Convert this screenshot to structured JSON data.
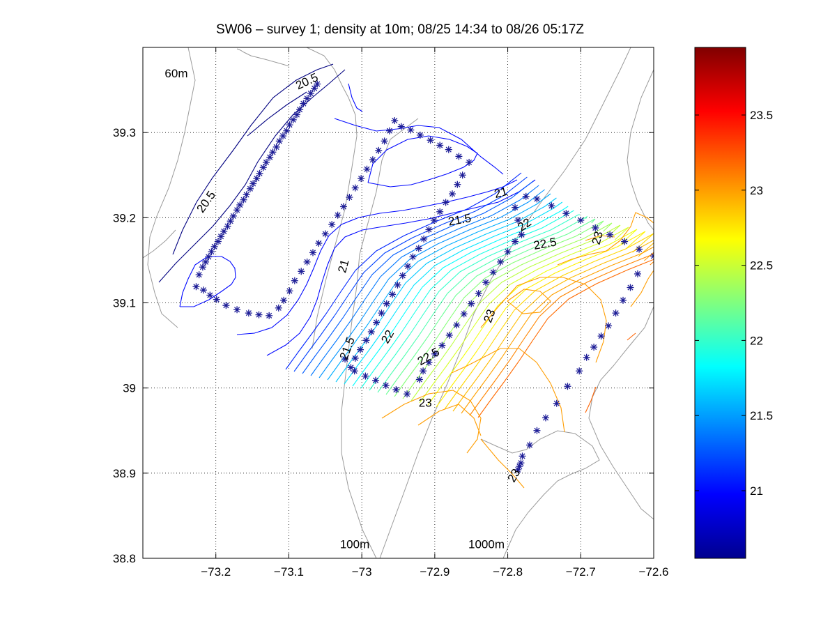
{
  "chart_data": {
    "type": "contour",
    "title": "SW06 – survey 1; density at 10m; 08/25 14:34 to 08/26 05:17Z",
    "xlim": [
      -73.3,
      -72.6
    ],
    "ylim": [
      38.8,
      39.4
    ],
    "x_ticks": [
      -73.2,
      -73.1,
      -73.0,
      -72.9,
      -72.8,
      -72.7,
      -72.6
    ],
    "x_tick_labels": [
      "−73.2",
      "−73.1",
      "−73",
      "−72.9",
      "−72.8",
      "−72.7",
      "−72.6"
    ],
    "y_ticks": [
      38.8,
      38.9,
      39.0,
      39.1,
      39.2,
      39.3
    ],
    "y_tick_labels": [
      "38.8",
      "38.9",
      "39",
      "39.1",
      "39.2",
      "39.3"
    ],
    "grid": true,
    "colorbar": {
      "range": [
        20.55,
        23.95
      ],
      "ticks": [
        21,
        21.5,
        22,
        22.5,
        23,
        23.5
      ],
      "tick_labels": [
        "21",
        "21.5",
        "22",
        "22.5",
        "23",
        "23.5"
      ],
      "colormap": "jet"
    },
    "isobath_labels": [
      {
        "text": "60m",
        "lon": -73.27,
        "lat": 39.365
      },
      {
        "text": "100m",
        "lon": -73.03,
        "lat": 38.812
      },
      {
        "text": "1000m",
        "lon": -72.854,
        "lat": 38.812
      }
    ],
    "contour_labels": [
      {
        "text": "20.5",
        "lon": -73.073,
        "lat": 39.356,
        "rot": -25
      },
      {
        "text": "20.5",
        "lon": -73.209,
        "lat": 39.216,
        "rot": -55
      },
      {
        "text": "21",
        "lon": -73.02,
        "lat": 39.142,
        "rot": -75
      },
      {
        "text": "21.5",
        "lon": -73.015,
        "lat": 39.045,
        "rot": -70
      },
      {
        "text": "22",
        "lon": -72.96,
        "lat": 39.058,
        "rot": -60
      },
      {
        "text": "22.5",
        "lon": -72.906,
        "lat": 39.033,
        "rot": -30
      },
      {
        "text": "23",
        "lon": -72.913,
        "lat": 38.978,
        "rot": 0
      },
      {
        "text": "21",
        "lon": -72.808,
        "lat": 39.225,
        "rot": -15
      },
      {
        "text": "21.5",
        "lon": -72.865,
        "lat": 39.193,
        "rot": -10
      },
      {
        "text": "22",
        "lon": -72.774,
        "lat": 39.188,
        "rot": -35
      },
      {
        "text": "22.5",
        "lon": -72.748,
        "lat": 39.165,
        "rot": -10
      },
      {
        "text": "23",
        "lon": -72.672,
        "lat": 39.175,
        "rot": -75
      },
      {
        "text": "23",
        "lon": -72.82,
        "lat": 39.083,
        "rot": -70
      },
      {
        "text": "23",
        "lon": -72.787,
        "lat": 38.895,
        "rot": -60
      }
    ],
    "stations": [
      [
        -73.227,
        39.119
      ],
      [
        -73.223,
        39.133
      ],
      [
        -73.218,
        39.142
      ],
      [
        -73.214,
        39.148
      ],
      [
        -73.21,
        39.154
      ],
      [
        -73.206,
        39.16
      ],
      [
        -73.202,
        39.166
      ],
      [
        -73.197,
        39.172
      ],
      [
        -73.193,
        39.178
      ],
      [
        -73.189,
        39.184
      ],
      [
        -73.184,
        39.19
      ],
      [
        -73.18,
        39.196
      ],
      [
        -73.176,
        39.202
      ],
      [
        -73.171,
        39.209
      ],
      [
        -73.167,
        39.215
      ],
      [
        -73.162,
        39.221
      ],
      [
        -73.158,
        39.227
      ],
      [
        -73.153,
        39.234
      ],
      [
        -73.149,
        39.24
      ],
      [
        -73.144,
        39.246
      ],
      [
        -73.14,
        39.252
      ],
      [
        -73.135,
        39.259
      ],
      [
        -73.131,
        39.265
      ],
      [
        -73.126,
        39.271
      ],
      [
        -73.122,
        39.277
      ],
      [
        -73.117,
        39.283
      ],
      [
        -73.113,
        39.29
      ],
      [
        -73.108,
        39.296
      ],
      [
        -73.103,
        39.302
      ],
      [
        -73.099,
        39.309
      ],
      [
        -73.094,
        39.315
      ],
      [
        -73.089,
        39.321
      ],
      [
        -73.085,
        39.327
      ],
      [
        -73.08,
        39.334
      ],
      [
        -73.075,
        39.34
      ],
      [
        -73.07,
        39.346
      ],
      [
        -73.065,
        39.352
      ],
      [
        -73.061,
        39.357
      ],
      [
        -73.217,
        39.115
      ],
      [
        -73.208,
        39.109
      ],
      [
        -73.199,
        39.104
      ],
      [
        -73.186,
        39.097
      ],
      [
        -73.171,
        39.092
      ],
      [
        -73.155,
        39.088
      ],
      [
        -73.141,
        39.086
      ],
      [
        -73.127,
        39.085
      ],
      [
        -73.114,
        39.094
      ],
      [
        -73.107,
        39.103
      ],
      [
        -73.099,
        39.114
      ],
      [
        -73.092,
        39.126
      ],
      [
        -73.083,
        39.137
      ],
      [
        -73.075,
        39.148
      ],
      [
        -73.067,
        39.159
      ],
      [
        -73.059,
        39.17
      ],
      [
        -73.05,
        39.181
      ],
      [
        -73.041,
        39.192
      ],
      [
        -73.033,
        39.203
      ],
      [
        -73.025,
        39.213
      ],
      [
        -73.017,
        39.224
      ],
      [
        -73.009,
        39.235
      ],
      [
        -73.001,
        39.246
      ],
      [
        -72.993,
        39.257
      ],
      [
        -72.985,
        39.268
      ],
      [
        -72.977,
        39.279
      ],
      [
        -72.969,
        39.29
      ],
      [
        -72.962,
        39.302
      ],
      [
        -72.955,
        39.314
      ],
      [
        -72.946,
        39.307
      ],
      [
        -72.933,
        39.303
      ],
      [
        -72.92,
        39.297
      ],
      [
        -72.906,
        39.291
      ],
      [
        -72.893,
        39.285
      ],
      [
        -72.881,
        39.28
      ],
      [
        -72.867,
        39.272
      ],
      [
        -72.853,
        39.265
      ],
      [
        -72.862,
        39.25
      ],
      [
        -72.869,
        39.239
      ],
      [
        -72.876,
        39.228
      ],
      [
        -72.885,
        39.218
      ],
      [
        -72.893,
        39.207
      ],
      [
        -72.901,
        39.197
      ],
      [
        -72.908,
        39.186
      ],
      [
        -72.915,
        39.175
      ],
      [
        -72.922,
        39.164
      ],
      [
        -72.93,
        39.154
      ],
      [
        -72.937,
        39.143
      ],
      [
        -72.944,
        39.132
      ],
      [
        -72.951,
        39.121
      ],
      [
        -72.958,
        39.11
      ],
      [
        -72.966,
        39.099
      ],
      [
        -72.973,
        39.088
      ],
      [
        -72.98,
        39.077
      ],
      [
        -72.987,
        39.066
      ],
      [
        -72.994,
        39.056
      ],
      [
        -73.002,
        39.045
      ],
      [
        -73.009,
        39.035
      ],
      [
        -73.015,
        39.024
      ],
      [
        -73.023,
        39.034
      ],
      [
        -73.01,
        39.02
      ],
      [
        -72.995,
        39.014
      ],
      [
        -72.981,
        39.009
      ],
      [
        -72.967,
        39.003
      ],
      [
        -72.953,
        38.998
      ],
      [
        -72.938,
        38.993
      ],
      [
        -72.921,
        39.01
      ],
      [
        -72.916,
        39.02
      ],
      [
        -72.908,
        39.03
      ],
      [
        -72.9,
        39.04
      ],
      [
        -72.89,
        39.05
      ],
      [
        -72.88,
        39.062
      ],
      [
        -72.87,
        39.074
      ],
      [
        -72.86,
        39.087
      ],
      [
        -72.85,
        39.099
      ],
      [
        -72.84,
        39.111
      ],
      [
        -72.83,
        39.124
      ],
      [
        -72.82,
        39.136
      ],
      [
        -72.81,
        39.148
      ],
      [
        -72.8,
        39.16
      ],
      [
        -72.79,
        39.172
      ],
      [
        -72.781,
        39.18
      ],
      [
        -72.786,
        39.197
      ],
      [
        -72.79,
        39.212
      ],
      [
        -72.775,
        39.225
      ],
      [
        -72.76,
        39.222
      ],
      [
        -72.74,
        39.214
      ],
      [
        -72.72,
        39.205
      ],
      [
        -72.7,
        39.197
      ],
      [
        -72.68,
        39.188
      ],
      [
        -72.66,
        39.18
      ],
      [
        -72.64,
        39.172
      ],
      [
        -72.62,
        39.163
      ],
      [
        -72.6,
        39.155
      ],
      [
        -72.622,
        39.134
      ],
      [
        -72.632,
        39.118
      ],
      [
        -72.642,
        39.103
      ],
      [
        -72.652,
        39.088
      ],
      [
        -72.662,
        39.073
      ],
      [
        -72.672,
        39.061
      ],
      [
        -72.682,
        39.048
      ],
      [
        -72.692,
        39.036
      ],
      [
        -72.702,
        39.02
      ],
      [
        -72.718,
        39.002
      ],
      [
        -72.733,
        38.982
      ],
      [
        -72.748,
        38.965
      ],
      [
        -72.76,
        38.95
      ],
      [
        -72.77,
        38.933
      ],
      [
        -72.78,
        38.92
      ],
      [
        -72.782,
        38.912
      ],
      [
        -72.784,
        38.908
      ],
      [
        -72.786,
        38.904
      ]
    ]
  }
}
